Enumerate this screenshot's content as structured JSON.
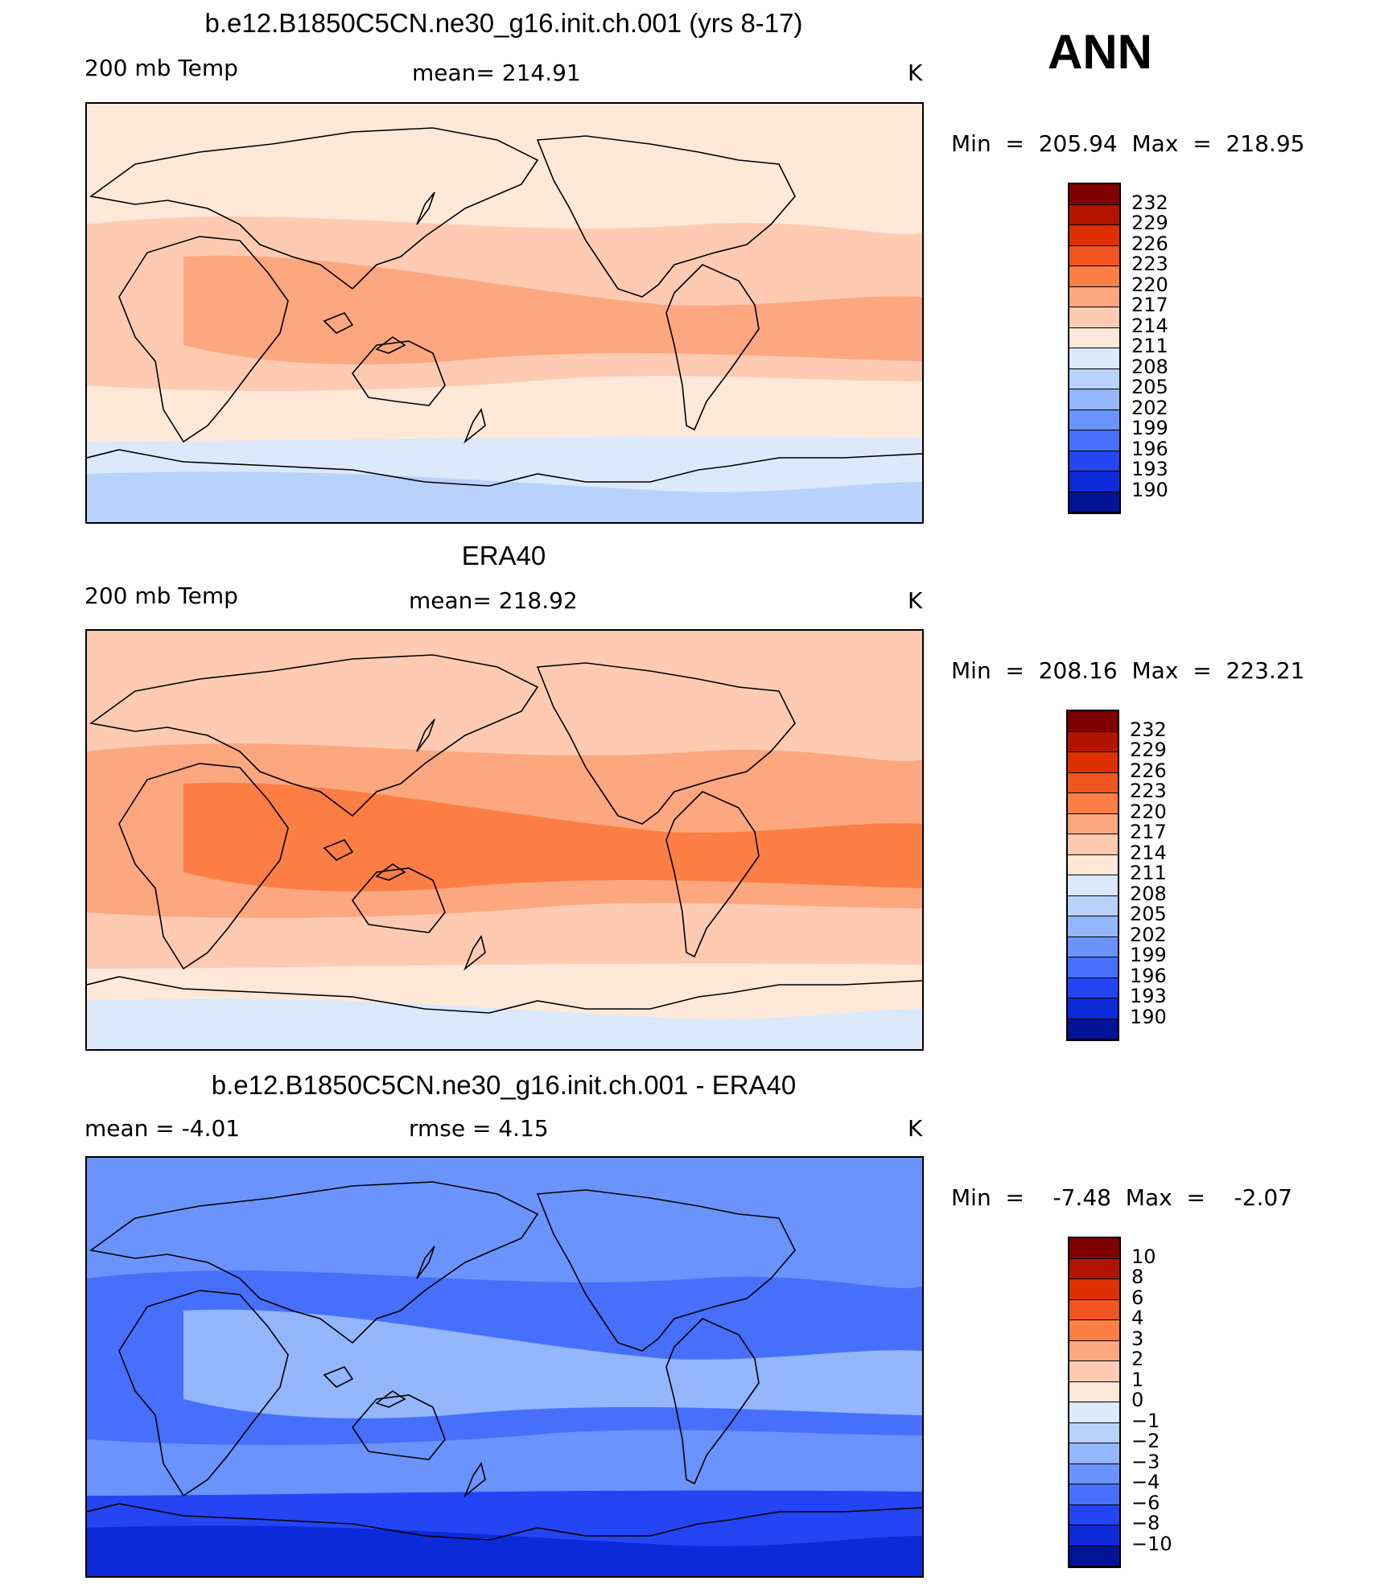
{
  "season": "ANN",
  "panels": [
    {
      "title": "b.e12.B1850C5CN.ne30_g16.init.ch.001 (yrs 8-17)",
      "left_label": "200 mb Temp",
      "center_label": "mean=  214.91",
      "right_label": "K",
      "stats": "Min  =  205.94  Max  =  218.95",
      "colorbar_levels": [
        "232",
        "229",
        "226",
        "223",
        "220",
        "217",
        "214",
        "211",
        "208",
        "205",
        "202",
        "199",
        "196",
        "193",
        "190"
      ],
      "palette": [
        "#7f0000",
        "#b21400",
        "#de3000",
        "#f2561f",
        "#fd7e44",
        "#fda780",
        "#fecbb2",
        "#fee8d8",
        "#dbe9fb",
        "#b8d2fc",
        "#93b6fd",
        "#6a93fd",
        "#4670fb",
        "#2345f3",
        "#0c2ad8",
        "#001495"
      ],
      "map_colors": {
        "base": "#fecbb2",
        "warm": "#fda780",
        "cool": "#fee8d8",
        "cold": "#dbe9fb",
        "colder": "#b8d2fc"
      }
    },
    {
      "title": "ERA40",
      "left_label": "200 mb Temp",
      "center_label": "mean=  218.92",
      "right_label": "K",
      "stats": "Min  =  208.16  Max  =  223.21",
      "colorbar_levels": [
        "232",
        "229",
        "226",
        "223",
        "220",
        "217",
        "214",
        "211",
        "208",
        "205",
        "202",
        "199",
        "196",
        "193",
        "190"
      ],
      "palette": [
        "#7f0000",
        "#b21400",
        "#de3000",
        "#f2561f",
        "#fd7e44",
        "#fda780",
        "#fecbb2",
        "#fee8d8",
        "#dbe9fb",
        "#b8d2fc",
        "#93b6fd",
        "#6a93fd",
        "#4670fb",
        "#2345f3",
        "#0c2ad8",
        "#001495"
      ],
      "map_colors": {
        "base": "#fda780",
        "warm": "#fd7e44",
        "cool": "#fecbb2",
        "cold": "#fee8d8",
        "colder": "#dbe9fb"
      }
    },
    {
      "title": "b.e12.B1850C5CN.ne30_g16.init.ch.001 - ERA40",
      "left_label": "mean  =    -4.01",
      "center_label": "rmse  =     4.15",
      "right_label": "K",
      "stats": "Min  =    -7.48  Max  =    -2.07",
      "colorbar_levels": [
        "10",
        "8",
        "6",
        "4",
        "3",
        "2",
        "1",
        "0",
        "-1",
        "-2",
        "-3",
        "-4",
        "-6",
        "-8",
        "-10"
      ],
      "palette": [
        "#7f0000",
        "#b21400",
        "#de3000",
        "#f2561f",
        "#fd7e44",
        "#fda780",
        "#fecbb2",
        "#fee8d8",
        "#dbe9fb",
        "#b8d2fc",
        "#93b6fd",
        "#6a93fd",
        "#4670fb",
        "#2345f3",
        "#0c2ad8",
        "#001495"
      ],
      "map_colors": {
        "base": "#4670fb",
        "warm": "#93b6fd",
        "cool": "#6a93fd",
        "cold": "#2345f3",
        "colder": "#0c2ad8"
      }
    }
  ]
}
